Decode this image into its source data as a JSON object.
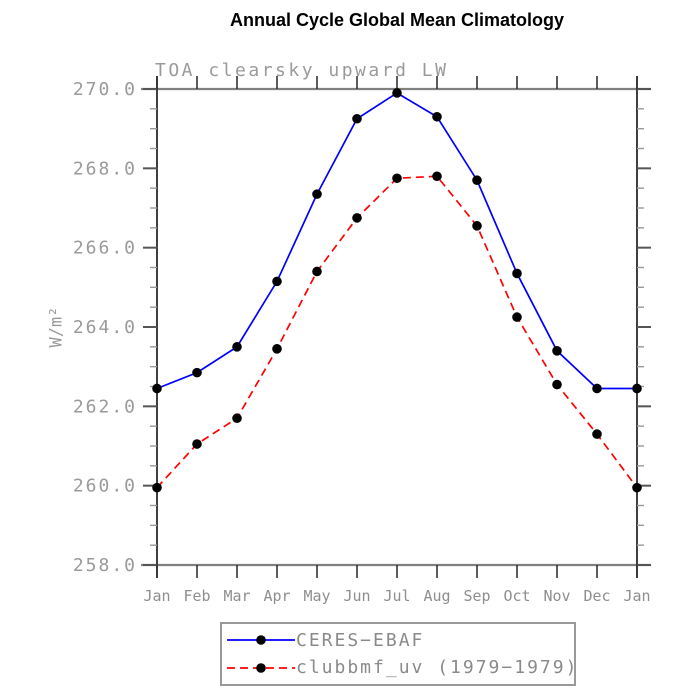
{
  "title": "Annual Cycle Global Mean Climatology",
  "subtitle": "TOA clearsky upward LW",
  "chart_data": {
    "type": "line",
    "categories": [
      "Jan",
      "Feb",
      "Mar",
      "Apr",
      "May",
      "Jun",
      "Jul",
      "Aug",
      "Sep",
      "Oct",
      "Nov",
      "Dec",
      "Jan"
    ],
    "xlabel": "",
    "ylabel": "W/m²",
    "ylim": [
      258.0,
      270.0
    ],
    "ytick_major_step": 2.0,
    "ytick_minor_step": 0.5,
    "grid": false,
    "legend_position": "bottom-center",
    "series": [
      {
        "name": "CERES−EBAF",
        "color": "#0000ff",
        "line_style": "solid",
        "marker": "filled-circle",
        "marker_color": "#000000",
        "values": [
          262.45,
          262.85,
          263.5,
          265.15,
          267.35,
          269.25,
          269.9,
          269.3,
          267.7,
          265.35,
          263.4,
          262.45,
          262.45
        ]
      },
      {
        "name": "clubbmf_uv (1979−1979)",
        "color": "#ff0000",
        "line_style": "dashed",
        "marker": "filled-circle",
        "marker_color": "#000000",
        "values": [
          259.95,
          261.05,
          261.7,
          263.45,
          265.4,
          266.75,
          267.75,
          267.8,
          266.55,
          264.25,
          262.55,
          261.3,
          259.95
        ]
      }
    ]
  },
  "colors": {
    "frame_horizontal": "#808080",
    "frame_vertical": "#2a2a2a",
    "tick_major": "#555555",
    "tick_minor": "#999999",
    "tick_label": "#9a9a9a",
    "title_text": "#000000",
    "legend_border": "#999999",
    "legend_text": "#8a8a8a"
  }
}
